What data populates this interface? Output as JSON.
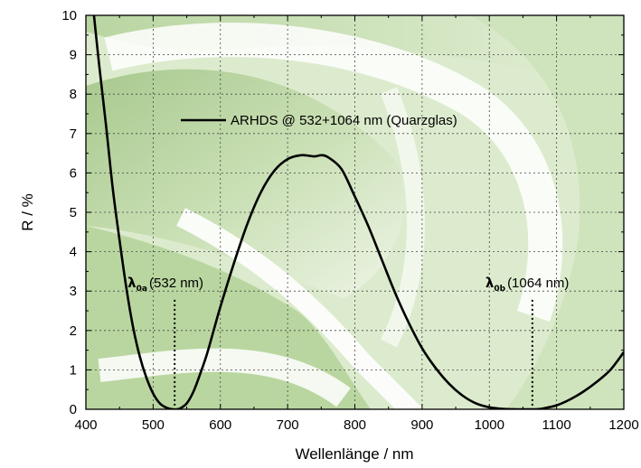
{
  "chart_data": {
    "type": "line",
    "xlabel": "Wellenlänge / nm",
    "ylabel": "R / %",
    "xlim": [
      400,
      1200
    ],
    "ylim": [
      0,
      10
    ],
    "x_ticks": [
      400,
      500,
      600,
      700,
      800,
      900,
      1000,
      1100,
      1200
    ],
    "y_ticks": [
      0,
      1,
      2,
      3,
      4,
      5,
      6,
      7,
      8,
      9,
      10
    ],
    "grid": true,
    "legend": {
      "placement": "top-center"
    },
    "series": [
      {
        "name": "ARHDS @ 532+1064 nm (Quarzglas)",
        "color": "#000000",
        "x": [
          412,
          420,
          430,
          440,
          450,
          460,
          470,
          480,
          490,
          500,
          510,
          520,
          530,
          535,
          540,
          550,
          560,
          570,
          580,
          590,
          600,
          620,
          640,
          660,
          680,
          700,
          720,
          740,
          750,
          760,
          780,
          800,
          820,
          840,
          860,
          880,
          900,
          920,
          940,
          960,
          980,
          1000,
          1020,
          1040,
          1060,
          1070,
          1080,
          1100,
          1120,
          1140,
          1160,
          1180,
          1200
        ],
        "y": [
          10.0,
          8.7,
          7.2,
          5.6,
          4.3,
          3.1,
          2.1,
          1.35,
          0.8,
          0.4,
          0.15,
          0.04,
          0.0,
          0.0,
          0.02,
          0.15,
          0.45,
          0.9,
          1.4,
          2.0,
          2.6,
          3.7,
          4.7,
          5.5,
          6.05,
          6.35,
          6.45,
          6.42,
          6.45,
          6.4,
          6.1,
          5.4,
          4.65,
          3.8,
          2.95,
          2.2,
          1.55,
          1.05,
          0.65,
          0.35,
          0.15,
          0.05,
          0.01,
          0.0,
          0.0,
          0.0,
          0.02,
          0.1,
          0.25,
          0.45,
          0.7,
          1.0,
          1.45
        ]
      }
    ],
    "annotations": [
      {
        "symbol": "λ",
        "subscript": "0a",
        "text": "(532 nm)",
        "x": 532
      },
      {
        "symbol": "λ",
        "subscript": "0b",
        "text": "(1064 nm)",
        "x": 1064
      }
    ]
  }
}
